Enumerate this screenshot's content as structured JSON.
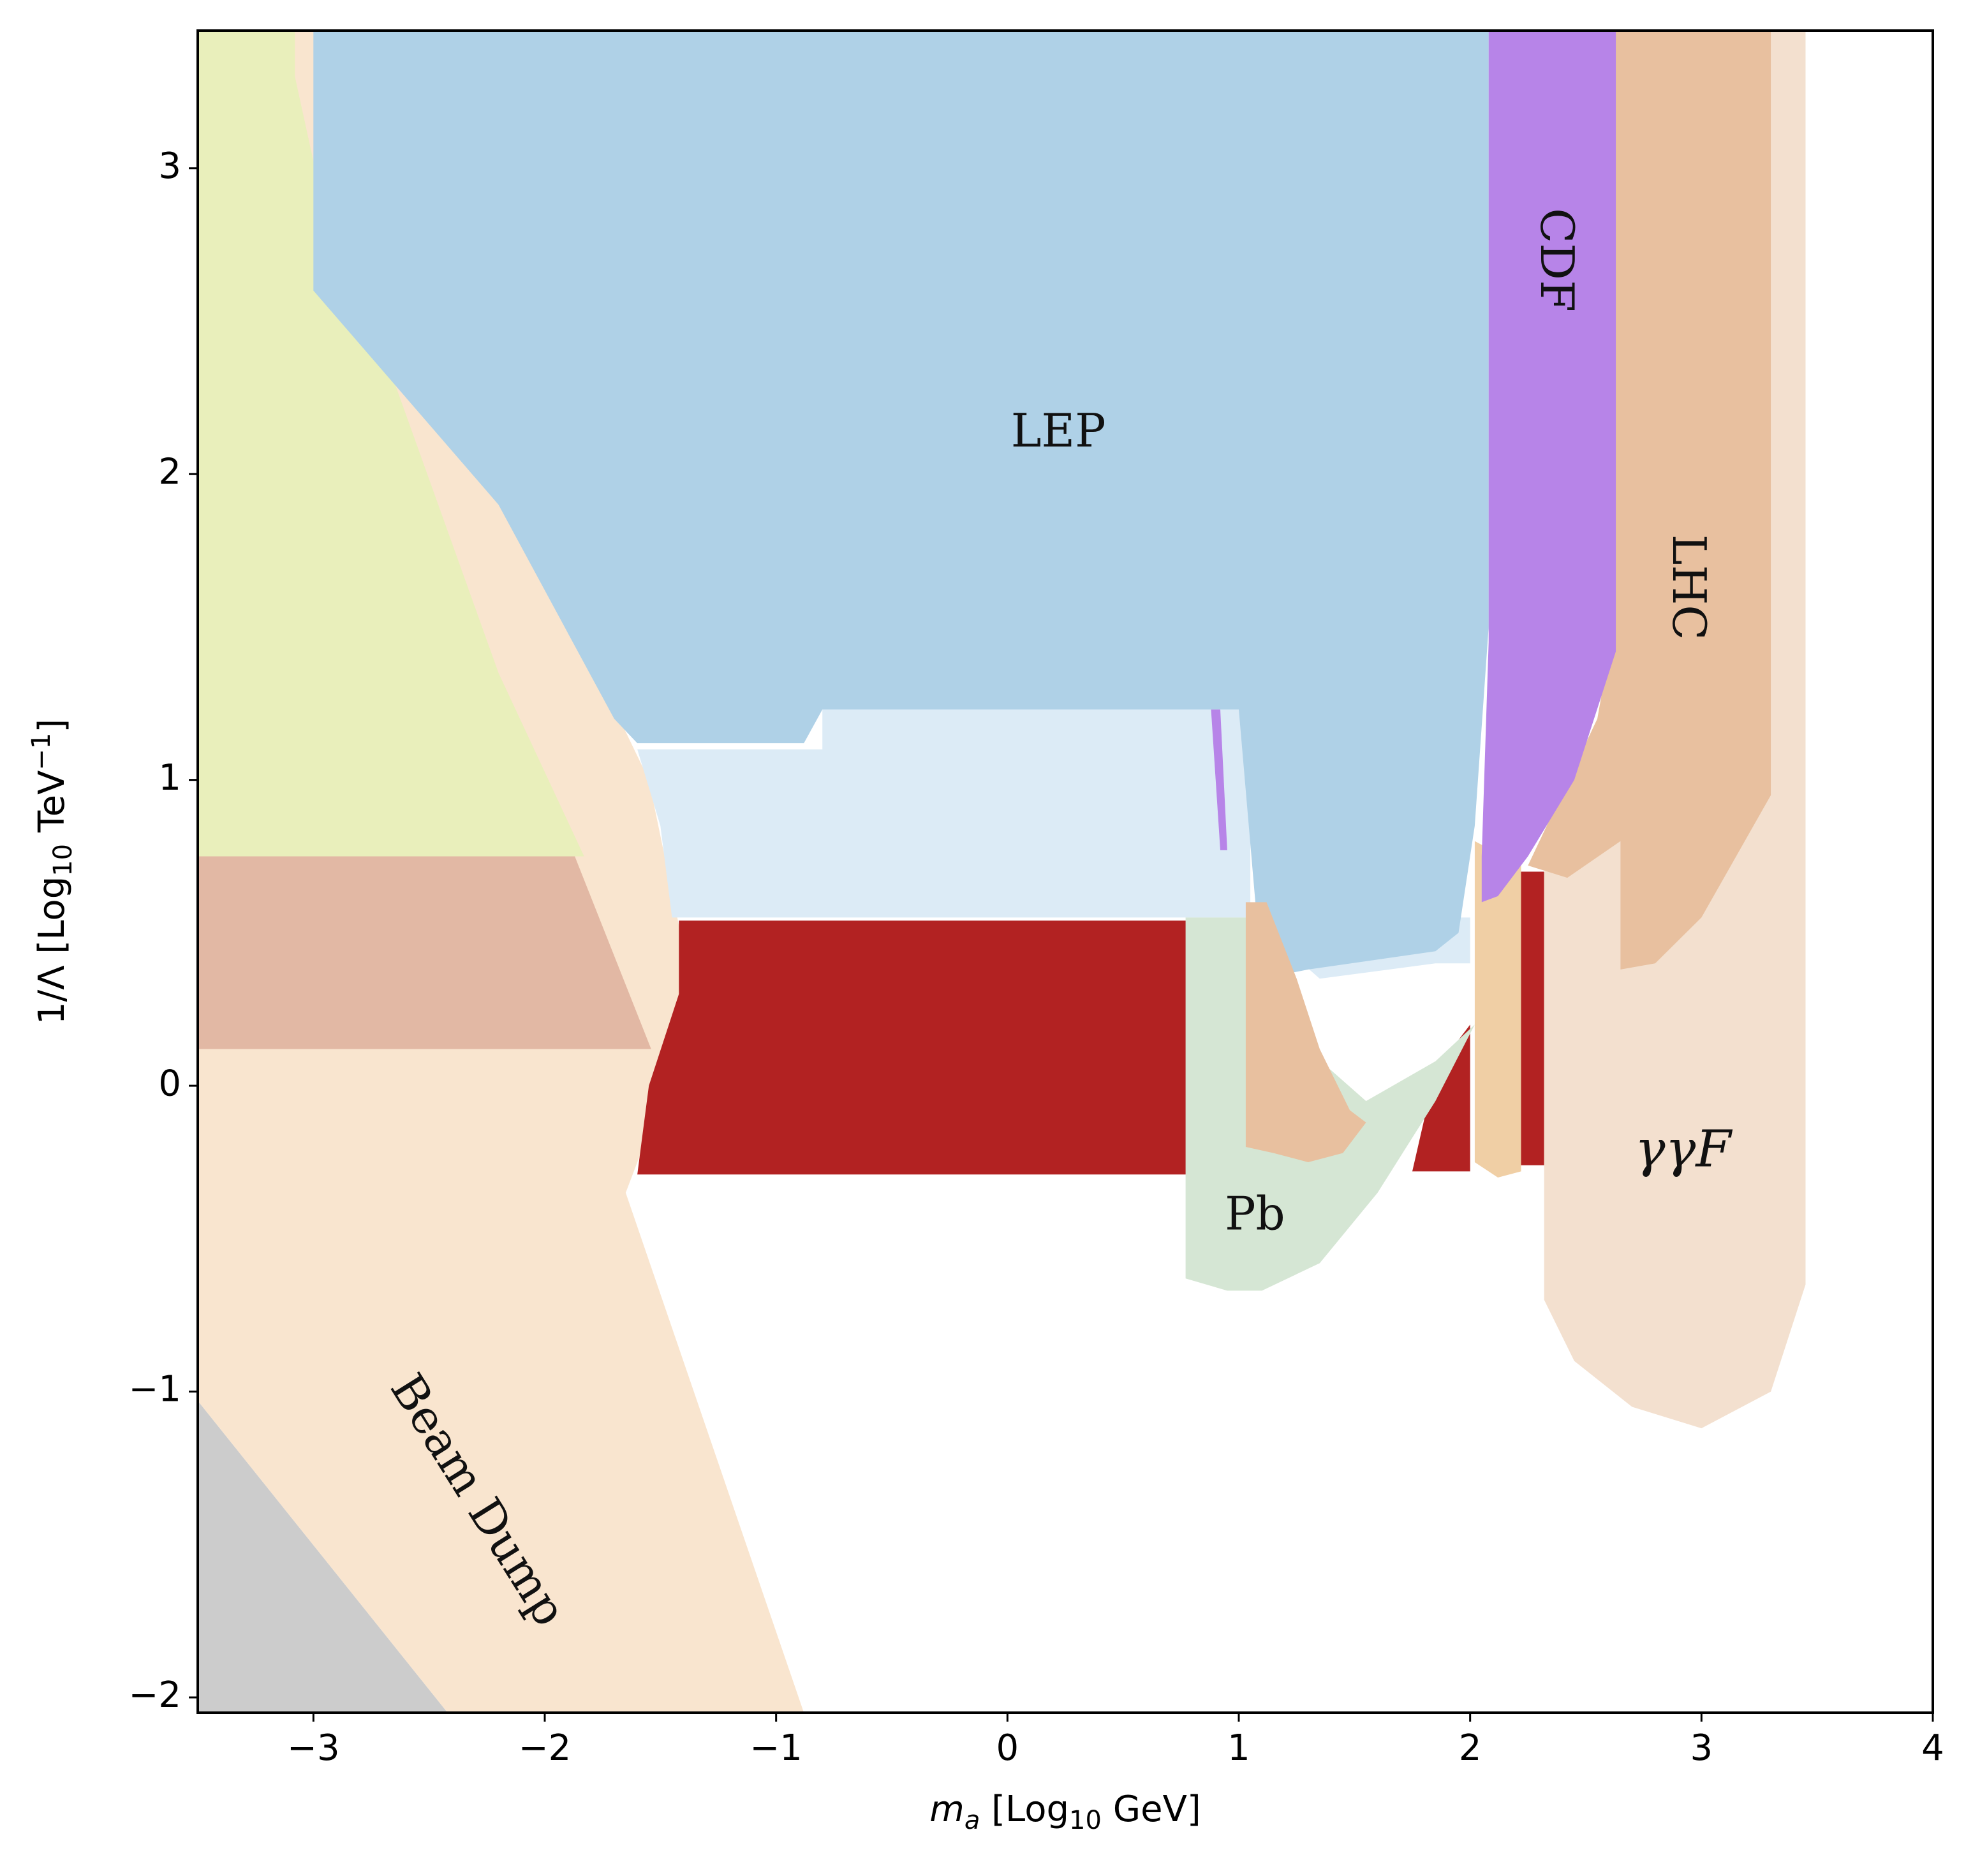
{
  "chart_data": {
    "type": "area",
    "title": "",
    "xlabel": {
      "main": "m",
      "sub": "a",
      "rest": " [Log",
      "sub2": "10",
      "rest2": " GeV]"
    },
    "ylabel": {
      "main": "1/Λ [Log",
      "sub": "10",
      "rest": " TeV",
      "sup": "−1",
      "end": "]"
    },
    "xlim": [
      -3.5,
      4
    ],
    "ylim": [
      -2.05,
      3.45
    ],
    "xticks": [
      {
        "value": -3,
        "label": "−3"
      },
      {
        "value": -2,
        "label": "−2"
      },
      {
        "value": -1,
        "label": "−1"
      },
      {
        "value": 0,
        "label": "0"
      },
      {
        "value": 1,
        "label": "1"
      },
      {
        "value": 2,
        "label": "2"
      },
      {
        "value": 3,
        "label": "3"
      },
      {
        "value": 4,
        "label": "4"
      }
    ],
    "yticks": [
      {
        "value": -2,
        "label": "−2"
      },
      {
        "value": -1,
        "label": "−1"
      },
      {
        "value": 0,
        "label": "0"
      },
      {
        "value": 1,
        "label": "1"
      },
      {
        "value": 2,
        "label": "2"
      },
      {
        "value": 3,
        "label": "3"
      }
    ],
    "grid": false,
    "regions": [
      {
        "id": "gray-region",
        "color": "#cccccc",
        "points": [
          [
            -3.5,
            -1.03
          ],
          [
            -3.5,
            -2.05
          ],
          [
            -2.42,
            -2.05
          ]
        ]
      },
      {
        "id": "beam-dump-region",
        "color": "#f9e5cf",
        "points": [
          [
            -3.5,
            3.45
          ],
          [
            -2.9,
            3.45
          ],
          [
            -2.82,
            2.8
          ],
          [
            -2.4,
            2.15
          ],
          [
            -1.9,
            1.55
          ],
          [
            -1.55,
            1.0
          ],
          [
            -1.4,
            0.45
          ],
          [
            -1.45,
            0.05
          ],
          [
            -1.6,
            -0.25
          ],
          [
            -1.65,
            -0.35
          ],
          [
            -0.88,
            -2.05
          ],
          [
            -2.42,
            -2.05
          ],
          [
            -3.5,
            -1.03
          ]
        ]
      },
      {
        "id": "green-region",
        "color": "#e9efbb",
        "points": [
          [
            -3.5,
            3.45
          ],
          [
            -3.08,
            3.45
          ],
          [
            -3.08,
            3.3
          ],
          [
            -2.95,
            2.85
          ],
          [
            -2.65,
            2.3
          ],
          [
            -2.2,
            1.35
          ],
          [
            -1.83,
            0.75
          ],
          [
            -3.5,
            0.75
          ]
        ]
      },
      {
        "id": "mauve-region",
        "color": "#e2b8a4",
        "points": [
          [
            -3.5,
            0.75
          ],
          [
            -1.87,
            0.75
          ],
          [
            -1.54,
            0.12
          ],
          [
            -3.5,
            0.12
          ]
        ]
      },
      {
        "id": "lep-light-region",
        "color": "#dcebf6",
        "points": [
          [
            -1.6,
            1.1
          ],
          [
            -0.8,
            1.1
          ],
          [
            -0.8,
            1.23
          ],
          [
            1.05,
            1.23
          ],
          [
            1.05,
            0.55
          ],
          [
            1.35,
            0.35
          ],
          [
            1.85,
            0.4
          ],
          [
            2.0,
            0.4
          ],
          [
            2.0,
            0.55
          ],
          [
            -1.45,
            0.55
          ],
          [
            -1.5,
            0.85
          ]
        ]
      },
      {
        "id": "lep-region",
        "color": "#afd1e7",
        "points": [
          [
            -3.0,
            3.45
          ],
          [
            2.08,
            3.45
          ],
          [
            2.08,
            1.5
          ],
          [
            2.02,
            0.85
          ],
          [
            1.95,
            0.5
          ],
          [
            1.85,
            0.44
          ],
          [
            1.3,
            0.38
          ],
          [
            1.1,
            0.35
          ],
          [
            1.0,
            1.23
          ],
          [
            -0.8,
            1.23
          ],
          [
            -0.88,
            1.12
          ],
          [
            -1.6,
            1.12
          ],
          [
            -1.7,
            1.2
          ],
          [
            -2.2,
            1.9
          ],
          [
            -3.0,
            2.6
          ]
        ]
      },
      {
        "id": "red-region",
        "color": "#b22222",
        "points": [
          [
            -1.42,
            0.54
          ],
          [
            0.78,
            0.54
          ],
          [
            0.78,
            -0.29
          ],
          [
            -1.6,
            -0.29
          ],
          [
            -1.55,
            0.0
          ],
          [
            -1.42,
            0.3
          ]
        ]
      },
      {
        "id": "red-region-right",
        "color": "#b22222",
        "points": [
          [
            1.75,
            -0.28
          ],
          [
            2.0,
            -0.28
          ],
          [
            2.0,
            0.2
          ],
          [
            1.85,
            0.05
          ]
        ]
      },
      {
        "id": "red-strip",
        "color": "#b22222",
        "points": [
          [
            2.22,
            0.7
          ],
          [
            2.32,
            0.7
          ],
          [
            2.32,
            -0.26
          ],
          [
            2.22,
            -0.26
          ]
        ]
      },
      {
        "id": "pb-region",
        "color": "#d5e6d4",
        "points": [
          [
            0.77,
            0.55
          ],
          [
            1.05,
            0.55
          ],
          [
            1.15,
            0.2
          ],
          [
            1.4,
            0.05
          ],
          [
            1.55,
            -0.05
          ],
          [
            1.85,
            0.08
          ],
          [
            2.02,
            0.2
          ],
          [
            1.85,
            -0.05
          ],
          [
            1.6,
            -0.35
          ],
          [
            1.35,
            -0.58
          ],
          [
            1.1,
            -0.67
          ],
          [
            0.95,
            -0.67
          ],
          [
            0.77,
            -0.63
          ]
        ]
      },
      {
        "id": "orange-region-mid",
        "color": "#e8c09f",
        "points": [
          [
            1.03,
            0.6
          ],
          [
            1.12,
            0.6
          ],
          [
            1.25,
            0.35
          ],
          [
            1.35,
            0.12
          ],
          [
            1.48,
            -0.08
          ],
          [
            1.55,
            -0.12
          ],
          [
            1.45,
            -0.22
          ],
          [
            1.3,
            -0.25
          ],
          [
            1.15,
            -0.22
          ],
          [
            1.03,
            -0.2
          ]
        ]
      },
      {
        "id": "orange-strips",
        "color": "#f0cfa5",
        "points": [
          [
            2.02,
            0.8
          ],
          [
            2.22,
            0.72
          ],
          [
            2.22,
            -0.28
          ],
          [
            2.12,
            -0.3
          ],
          [
            2.02,
            -0.25
          ]
        ]
      },
      {
        "id": "gammagamma-region",
        "color": "#f3e0cf",
        "points": [
          [
            2.32,
            0.7
          ],
          [
            2.8,
            0.9
          ],
          [
            3.1,
            1.5
          ],
          [
            3.3,
            3.45
          ],
          [
            3.45,
            3.45
          ],
          [
            3.45,
            -0.65
          ],
          [
            3.3,
            -1.0
          ],
          [
            3.0,
            -1.12
          ],
          [
            2.7,
            -1.05
          ],
          [
            2.45,
            -0.9
          ],
          [
            2.32,
            -0.7
          ]
        ]
      },
      {
        "id": "lhc-region",
        "color": "#e8c09f",
        "points": [
          [
            2.62,
            3.45
          ],
          [
            3.3,
            3.45
          ],
          [
            3.3,
            0.95
          ],
          [
            3.15,
            0.75
          ],
          [
            3.0,
            0.55
          ],
          [
            2.8,
            0.4
          ],
          [
            2.65,
            0.38
          ],
          [
            2.65,
            0.8
          ],
          [
            2.42,
            0.68
          ],
          [
            2.25,
            0.72
          ],
          [
            2.55,
            1.2
          ],
          [
            2.62,
            1.5
          ]
        ]
      },
      {
        "id": "cdf-region",
        "color": "#b784e8",
        "points": [
          [
            2.08,
            3.45
          ],
          [
            2.63,
            3.45
          ],
          [
            2.63,
            1.42
          ],
          [
            2.45,
            1.0
          ],
          [
            2.25,
            0.75
          ],
          [
            2.12,
            0.62
          ],
          [
            2.05,
            0.6
          ],
          [
            2.05,
            0.75
          ],
          [
            2.08,
            1.45
          ]
        ]
      },
      {
        "id": "cdf-sliver",
        "color": "#b784e8",
        "points": [
          [
            0.88,
            1.23
          ],
          [
            0.92,
            1.23
          ],
          [
            0.95,
            0.77
          ],
          [
            0.92,
            0.77
          ]
        ]
      }
    ],
    "labels": [
      {
        "text": "LEP",
        "x": 0.22,
        "y": 2.13,
        "rotate": 0,
        "style": "normal"
      },
      {
        "text": "CDF",
        "x": 2.36,
        "y": 2.7,
        "rotate": 90,
        "style": "normal"
      },
      {
        "text": "LHC",
        "x": 2.93,
        "y": 1.63,
        "rotate": 90,
        "style": "normal"
      },
      {
        "text": "Pb",
        "x": 1.07,
        "y": -0.43,
        "rotate": 0,
        "style": "normal"
      },
      {
        "text": "γγF",
        "x": 2.92,
        "y": -0.22,
        "rotate": 0,
        "style": "italic"
      },
      {
        "text": "Beam Dump",
        "x": -2.3,
        "y": -1.36,
        "rotate": 58,
        "style": "normal"
      }
    ]
  }
}
